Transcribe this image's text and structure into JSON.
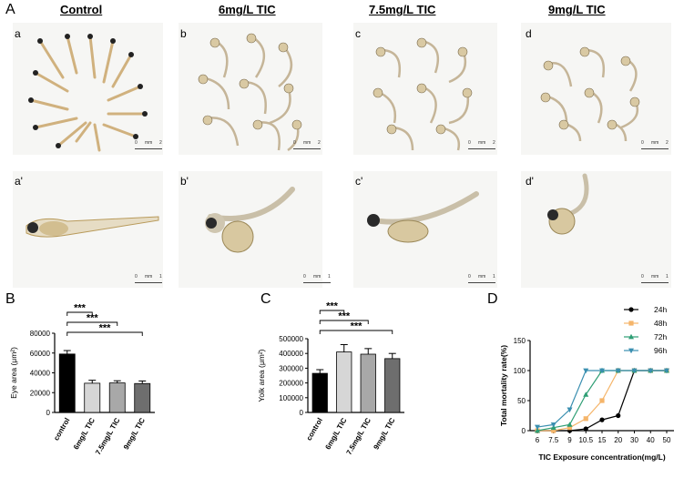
{
  "panel_labels": {
    "A": "A",
    "B": "B",
    "C": "C",
    "D": "D"
  },
  "columns": [
    {
      "title": "Control"
    },
    {
      "title": "6mg/L TIC"
    },
    {
      "title": "7.5mg/L TIC"
    },
    {
      "title": "9mg/L TIC"
    }
  ],
  "photos_top": [
    {
      "letter": "a",
      "scale": [
        "0",
        "mm",
        "2"
      ]
    },
    {
      "letter": "b",
      "scale": [
        "0",
        "mm",
        "2"
      ]
    },
    {
      "letter": "c",
      "scale": [
        "0",
        "mm",
        "2"
      ]
    },
    {
      "letter": "d",
      "scale": [
        "0",
        "mm",
        "2"
      ]
    }
  ],
  "photos_bottom": [
    {
      "letter": "a'",
      "scale": [
        "0",
        "mm",
        "1"
      ]
    },
    {
      "letter": "b'",
      "scale": [
        "0",
        "mm",
        "1"
      ]
    },
    {
      "letter": "c'",
      "scale": [
        "0",
        "mm",
        "1"
      ]
    },
    {
      "letter": "d'",
      "scale": [
        "0",
        "mm",
        "1"
      ]
    }
  ],
  "chart_data": [
    {
      "type": "bar",
      "panel": "B",
      "ylabel": "Eye area (μm²)",
      "categories": [
        "control",
        "6mg/L TIC",
        "7.5mg/L TIC",
        "9mg/L TIC"
      ],
      "values": [
        59000,
        29500,
        29800,
        29200
      ],
      "errors": [
        3500,
        3000,
        2200,
        2600
      ],
      "colors": [
        "#000000",
        "#d6d6d6",
        "#a8a8a8",
        "#6e6e6e"
      ],
      "ylim": [
        0,
        80000
      ],
      "yticks": [
        "0",
        "20000",
        "40000",
        "60000",
        "80000"
      ],
      "significance": [
        "***",
        "***",
        "***"
      ]
    },
    {
      "type": "bar",
      "panel": "C",
      "ylabel": "Yolk area (μm²)",
      "categories": [
        "control",
        "6mg/L TIC",
        "7.5mg/L TIC",
        "9mg/L TIC"
      ],
      "values": [
        265000,
        410000,
        395000,
        365000
      ],
      "errors": [
        25000,
        50000,
        38000,
        35000
      ],
      "colors": [
        "#000000",
        "#d6d6d6",
        "#a8a8a8",
        "#6e6e6e"
      ],
      "ylim": [
        0,
        500000
      ],
      "yticks": [
        "0",
        "100000",
        "200000",
        "300000",
        "400000",
        "500000"
      ],
      "significance": [
        "***",
        "***",
        "***"
      ]
    },
    {
      "type": "line",
      "panel": "D",
      "xlabel": "TIC Exposure concentration(mg/L)",
      "ylabel": "Total mortality rate(%)",
      "x": [
        "6",
        "7.5",
        "9",
        "10.5",
        "15",
        "20",
        "30",
        "40",
        "50"
      ],
      "ylim": [
        0,
        150
      ],
      "yticks": [
        "0",
        "50",
        "100",
        "150"
      ],
      "legend_position": "top-right",
      "series": [
        {
          "name": "24h",
          "color": "#000000",
          "marker": "circle",
          "values": [
            0,
            0,
            0,
            3,
            18,
            25,
            100,
            100,
            100
          ]
        },
        {
          "name": "48h",
          "color": "#f5b56a",
          "marker": "square",
          "values": [
            0,
            0,
            5,
            20,
            50,
            100,
            100,
            100,
            100
          ]
        },
        {
          "name": "72h",
          "color": "#2e9e74",
          "marker": "triangle",
          "values": [
            0,
            5,
            10,
            60,
            100,
            100,
            100,
            100,
            100
          ]
        },
        {
          "name": "96h",
          "color": "#3a8fb0",
          "marker": "triangle-down",
          "values": [
            6,
            10,
            35,
            100,
            100,
            100,
            100,
            100,
            100
          ]
        }
      ]
    }
  ]
}
